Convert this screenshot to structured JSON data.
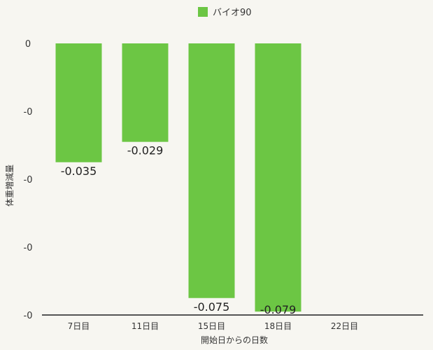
{
  "chart_data": {
    "type": "bar",
    "title": "",
    "xlabel": "開始日からの日数",
    "ylabel": "体重増減量",
    "categories": [
      "7日目",
      "11日目",
      "15日目",
      "18日目",
      "22日目"
    ],
    "series": [
      {
        "name": "バイオ90",
        "values": [
          -0.035,
          -0.029,
          -0.075,
          -0.079,
          null
        ],
        "data_labels": [
          "-0.035",
          "-0.029",
          "-0.075",
          "-0.079",
          ""
        ]
      }
    ],
    "ylim": [
      -0.08,
      0
    ],
    "yticks": [
      0,
      -0.02,
      -0.04,
      -0.06,
      -0.08
    ],
    "ytick_labels": [
      "0",
      "-0",
      "-0",
      "-0",
      "-0"
    ],
    "legend_position": "top-center",
    "grid": false,
    "colors": {
      "bar": "#6cc644",
      "axis": "#555555"
    }
  }
}
